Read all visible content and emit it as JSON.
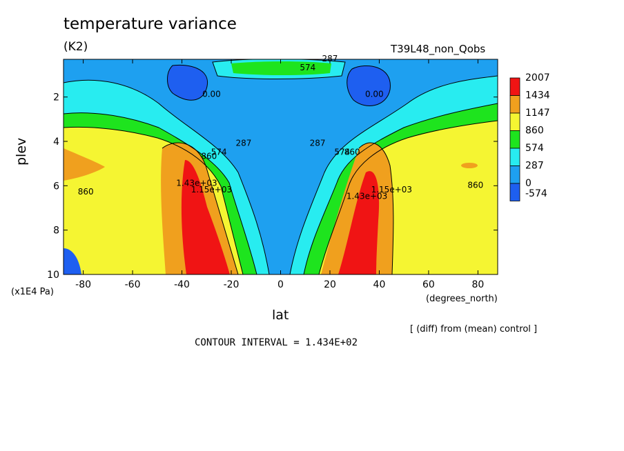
{
  "title": "temperature variance",
  "units": "(K2)",
  "run_label": "T39L48_non_Qobs",
  "footer_note": "[ (diff) from (mean) control ]",
  "contour_interval": "CONTOUR INTERVAL = 1.434E+02",
  "colors": {
    "c_-574": "#1e5ff0",
    "c_0": "#1ea0f0",
    "c_287": "#28ecf0",
    "c_574": "#1ee41e",
    "c_860": "#f5f532",
    "c_1147": "#f0a01e",
    "c_1434": "#f01414"
  },
  "chart_data": {
    "type": "contour",
    "title": "temperature variance",
    "subtitle": "(K2)",
    "xlabel": "lat",
    "xunits": "(degrees_north)",
    "ylabel": "plev",
    "yunits": "(x1E4 Pa)",
    "xlim": [
      -88,
      88
    ],
    "ylim": [
      10,
      0.3
    ],
    "x_ticks": [
      -80,
      -60,
      -40,
      -20,
      0,
      20,
      40,
      60,
      80
    ],
    "y_ticks": [
      2,
      4,
      6,
      8,
      10
    ],
    "colorbar_levels": [
      "2007",
      "1434",
      "1147",
      "860",
      "574",
      "287",
      "0",
      "-574"
    ],
    "contour_labels": [
      {
        "text": "287",
        "lat": 20,
        "plev": 0.4
      },
      {
        "text": "574",
        "lat": 11,
        "plev": 0.8
      },
      {
        "text": "0.00",
        "lat": -28,
        "plev": 2.0
      },
      {
        "text": "0.00",
        "lat": 38,
        "plev": 2.0
      },
      {
        "text": "287",
        "lat": -15,
        "plev": 4.2
      },
      {
        "text": "287",
        "lat": 15,
        "plev": 4.2
      },
      {
        "text": "574",
        "lat": -25,
        "plev": 4.6
      },
      {
        "text": "574",
        "lat": 25,
        "plev": 4.6
      },
      {
        "text": "860",
        "lat": -29,
        "plev": 4.8
      },
      {
        "text": "860",
        "lat": 29,
        "plev": 4.6
      },
      {
        "text": "1.15e+03",
        "lat": -28,
        "plev": 6.3
      },
      {
        "text": "1.15e+03",
        "lat": 45,
        "plev": 6.3
      },
      {
        "text": "1.43e+03",
        "lat": -34,
        "plev": 6.0
      },
      {
        "text": "1.43e+03",
        "lat": 35,
        "plev": 6.6
      },
      {
        "text": "860",
        "lat": -79,
        "plev": 6.4
      },
      {
        "text": "860",
        "lat": 79,
        "plev": 6.1
      }
    ]
  }
}
